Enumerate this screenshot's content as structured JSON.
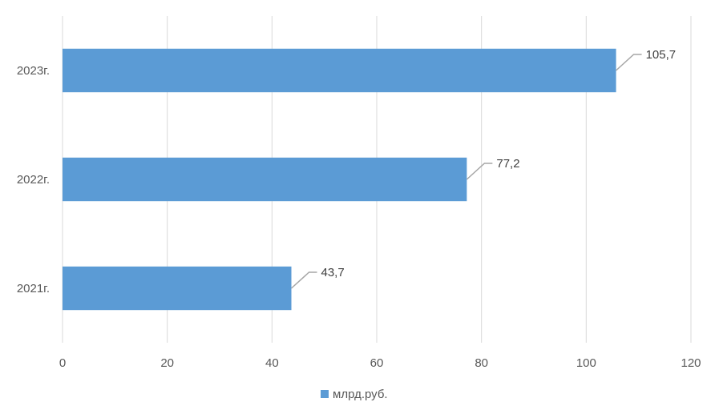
{
  "chart_data": {
    "type": "bar",
    "orientation": "horizontal",
    "categories": [
      "2021г.",
      "2022г.",
      "2023г."
    ],
    "series": [
      {
        "name": "млрд.руб.",
        "values": [
          43.7,
          77.2,
          105.7
        ],
        "color": "#5B9BD5"
      }
    ],
    "data_labels": [
      "43,7",
      "77,2",
      "105,7"
    ],
    "xlim": [
      0,
      120
    ],
    "x_ticks": [
      0,
      20,
      40,
      60,
      80,
      100,
      120
    ],
    "title": "",
    "xlabel": "",
    "ylabel": "",
    "grid": true,
    "legend_position": "bottom"
  }
}
